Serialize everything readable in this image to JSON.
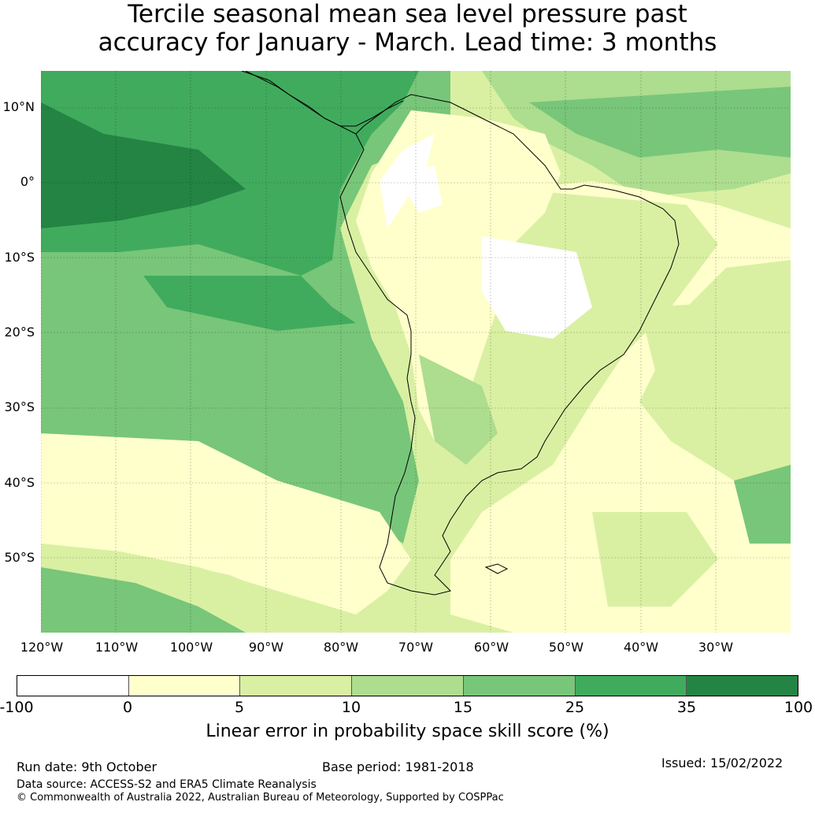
{
  "title": {
    "line1": "Tercile seasonal mean sea level pressure past",
    "line2": "accuracy for January - March. Lead time: 3 months"
  },
  "map": {
    "region": "South America and adjacent eastern Pacific / western Atlantic",
    "lon_range": [
      -120,
      -20
    ],
    "lat_range": [
      -60,
      15
    ],
    "lon_labels": [
      "120°W",
      "110°W",
      "100°W",
      "90°W",
      "80°W",
      "70°W",
      "60°W",
      "50°W",
      "40°W",
      "30°W"
    ],
    "lat_labels": [
      "10°N",
      "0°",
      "10°S",
      "20°S",
      "30°S",
      "40°S",
      "50°S"
    ]
  },
  "colorbar": {
    "ticks": [
      "-100",
      "0",
      "5",
      "10",
      "15",
      "25",
      "35",
      "100"
    ],
    "colors": [
      "#ffffff",
      "#ffffcc",
      "#d9f0a3",
      "#addd8e",
      "#78c679",
      "#41ab5d",
      "#238443"
    ],
    "label": "Linear error in probability space skill score (%)"
  },
  "footer": {
    "run_date": "Run date: 9th October",
    "base_period": "Base period: 1981-2018",
    "issued": "Issued: 15/02/2022",
    "data_source": "Data source: ACCESS-S2 and ERA5 Climate Reanalysis",
    "copyright": "© Commonwealth of Australia 2022, Australian Bureau of Meteorology, Supported by COSPPac"
  }
}
